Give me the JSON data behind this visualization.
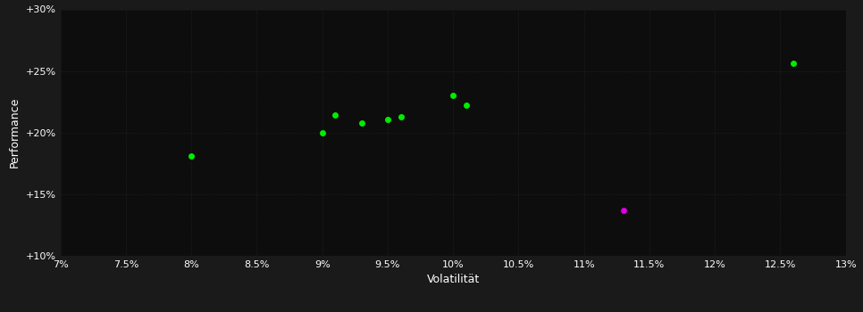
{
  "background_color": "#1a1a1a",
  "plot_bg_color": "#0d0d0d",
  "grid_color": "#2a2a2a",
  "text_color": "#ffffff",
  "xlabel": "Volatilität",
  "ylabel": "Performance",
  "xlim": [
    0.07,
    0.13
  ],
  "ylim": [
    0.1,
    0.3
  ],
  "xticks": [
    0.07,
    0.075,
    0.08,
    0.085,
    0.09,
    0.095,
    0.1,
    0.105,
    0.11,
    0.115,
    0.12,
    0.125,
    0.13
  ],
  "xtick_labels": [
    "7%",
    "7.5%",
    "8%",
    "8.5%",
    "9%",
    "9.5%",
    "10%",
    "10.5%",
    "11%",
    "11.5%",
    "12%",
    "12.5%",
    "13%"
  ],
  "yticks": [
    0.1,
    0.15,
    0.2,
    0.25,
    0.3
  ],
  "ytick_labels": [
    "+10%",
    "+15%",
    "+20%",
    "+25%",
    "+30%"
  ],
  "green_points": [
    [
      0.08,
      0.181
    ],
    [
      0.09,
      0.2
    ],
    [
      0.091,
      0.214
    ],
    [
      0.093,
      0.208
    ],
    [
      0.095,
      0.211
    ],
    [
      0.096,
      0.213
    ],
    [
      0.1,
      0.23
    ],
    [
      0.101,
      0.222
    ],
    [
      0.126,
      0.256
    ]
  ],
  "magenta_points": [
    [
      0.113,
      0.137
    ]
  ],
  "green_color": "#00ee00",
  "magenta_color": "#dd00dd",
  "marker_size": 5
}
